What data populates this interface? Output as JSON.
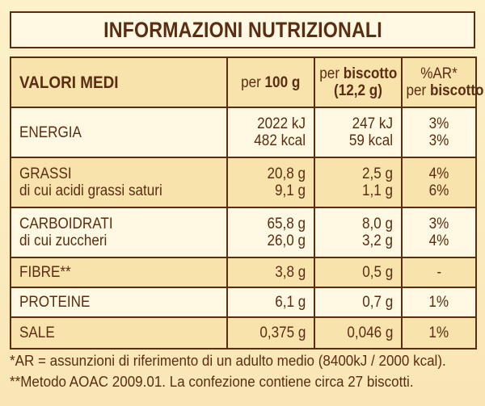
{
  "title": "INFORMAZIONI NUTRIZIONALI",
  "header": {
    "col1": "VALORI MEDI",
    "col2_a": "per ",
    "col2_b": "100 g",
    "col3_a": "per ",
    "col3_b": "biscotto",
    "col3_c": "(12,2 g)",
    "col4_a": "%AR*",
    "col4_b": "per ",
    "col4_c": "biscotto"
  },
  "rows": {
    "energia": {
      "label": "ENERGIA",
      "per100_kj": "2022 kJ",
      "per100_kcal": "482 kcal",
      "perbisc_kj": "247 kJ",
      "perbisc_kcal": "59 kcal",
      "ar_kj": "3%",
      "ar_kcal": "3%"
    },
    "grassi": {
      "label": "GRASSI",
      "sublabel": "di cui acidi grassi saturi",
      "per100": "20,8 g",
      "per100_sub": "9,1 g",
      "perbisc": "2,5 g",
      "perbisc_sub": "1,1 g",
      "ar": "4%",
      "ar_sub": "6%"
    },
    "carboidrati": {
      "label": "CARBOIDRATI",
      "sublabel": "di cui zuccheri",
      "per100": "65,8 g",
      "per100_sub": "26,0 g",
      "perbisc": "8,0 g",
      "perbisc_sub": "3,2 g",
      "ar": "3%",
      "ar_sub": "4%"
    },
    "fibre": {
      "label": "FIBRE**",
      "per100": "3,8 g",
      "perbisc": "0,5 g",
      "ar": "-"
    },
    "proteine": {
      "label": "PROTEINE",
      "per100": "6,1 g",
      "perbisc": "0,7 g",
      "ar": "1%"
    },
    "sale": {
      "label": "SALE",
      "per100": "0,375 g",
      "perbisc": "0,046 g",
      "ar": "1%"
    }
  },
  "footnotes": {
    "line1": "*AR = assunzioni di riferimento di un adulto medio (8400kJ / 2000 kcal).",
    "line2": "**Metodo AOAC 2009.01. La confezione contiene circa 27 biscotti."
  },
  "colors": {
    "text": "#5a2d12",
    "row_light": "#fff8e2",
    "row_dark": "#f9e3ad"
  }
}
